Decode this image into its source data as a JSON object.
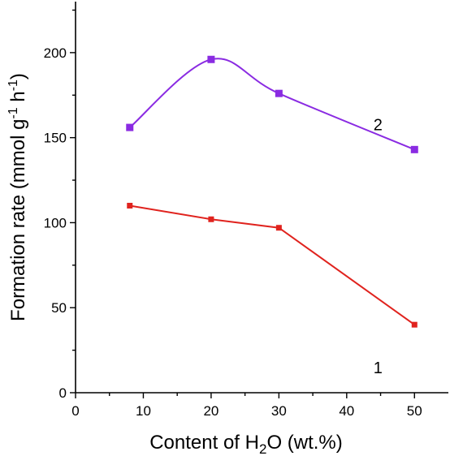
{
  "chart_data": {
    "type": "line",
    "xlabel": {
      "prefix": "Content of H",
      "subscript": "2",
      "suffix": "O (wt.%)"
    },
    "ylabel": {
      "prefix": "Formation rate  (mmol g",
      "sup1": "-1",
      "middle": " h",
      "sup2": "-1",
      "suffix": ")"
    },
    "xlim": [
      0,
      55
    ],
    "ylim": [
      0,
      230
    ],
    "xticks": [
      0,
      10,
      20,
      30,
      40,
      50
    ],
    "yticks": [
      0,
      50,
      100,
      150,
      200
    ],
    "grid": false,
    "legend": "none",
    "series": [
      {
        "label": "1",
        "color": "#e0231e",
        "marker": "square",
        "smooth": false,
        "x": [
          8,
          20,
          30,
          50
        ],
        "y": [
          110,
          102,
          97,
          40
        ]
      },
      {
        "label": "2",
        "color": "#8a2be2",
        "marker": "square",
        "smooth": true,
        "x": [
          8,
          20,
          30,
          50
        ],
        "y": [
          156,
          196,
          176,
          143
        ]
      }
    ]
  }
}
